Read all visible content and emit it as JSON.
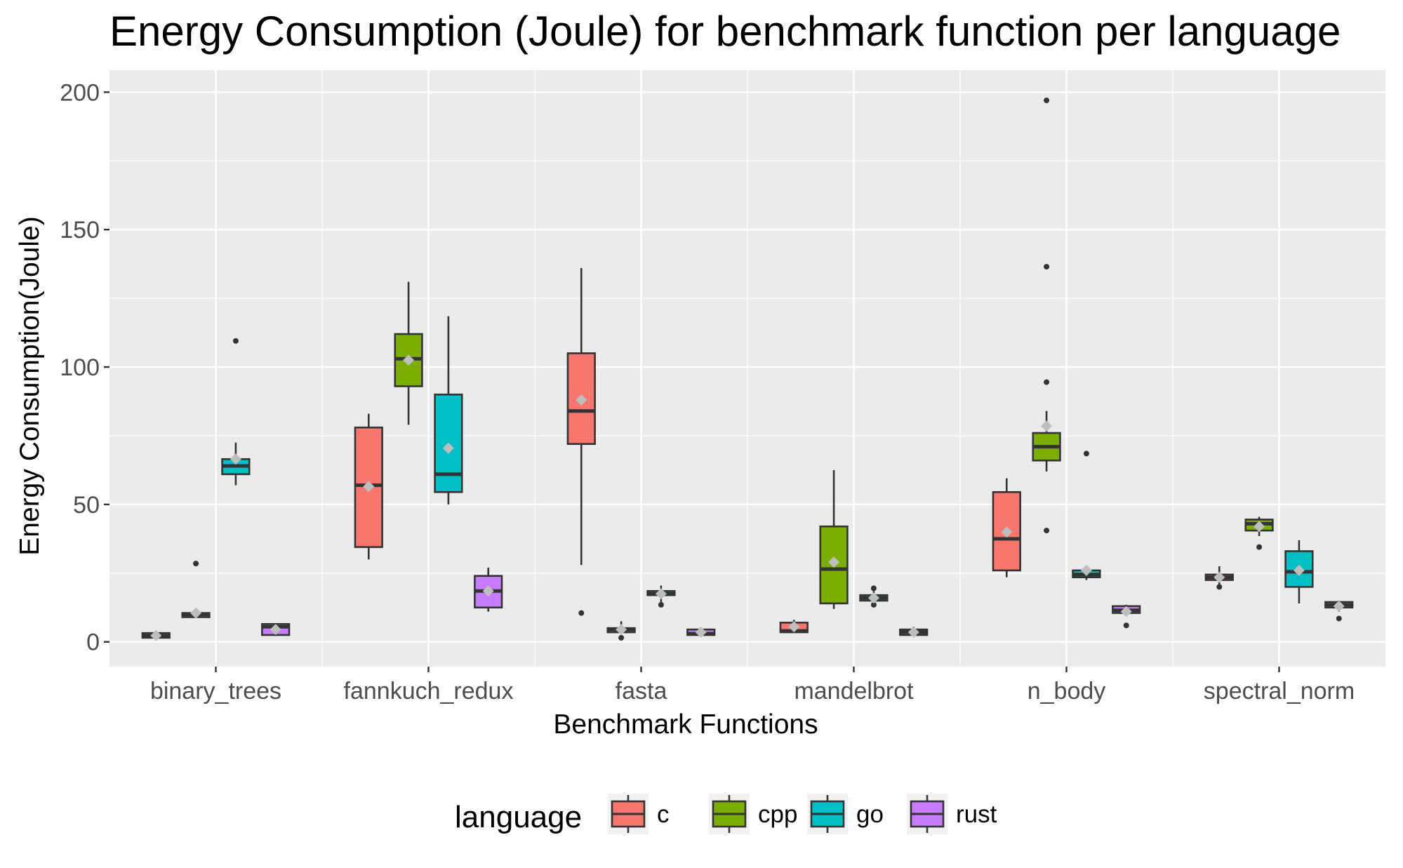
{
  "chart_data": {
    "type": "boxplot",
    "title": "Energy Consumption (Joule) for benchmark function per language",
    "xlabel": "Benchmark Functions",
    "ylabel": "Energy Consumption(Joule)",
    "ylim": [
      -9,
      208
    ],
    "yticks": [
      0,
      50,
      100,
      150,
      200
    ],
    "categories": [
      "binary_trees",
      "fannkuch_redux",
      "fasta",
      "mandelbrot",
      "n_body",
      "spectral_norm"
    ],
    "legend": {
      "title": "language",
      "placement": "bottom",
      "entries": [
        "c",
        "cpp",
        "go",
        "rust"
      ]
    },
    "colors": {
      "c": "#F8766D",
      "cpp": "#7CAE00",
      "go": "#00BFC4",
      "rust": "#C77CFF",
      "panel": "#EBEBEB",
      "grid": "#FFFFFF",
      "box_line": "#333333",
      "mean_marker": "#BEBEBE"
    },
    "series": [
      {
        "name": "c",
        "boxes": [
          {
            "category": "binary_trees",
            "min": 1.5,
            "q1": 1.5,
            "median": 2.2,
            "q3": 3.2,
            "max": 3.5,
            "mean": 2.3,
            "outliers": []
          },
          {
            "category": "fannkuch_redux",
            "min": 30,
            "q1": 34.5,
            "median": 57,
            "q3": 78,
            "max": 83,
            "mean": 56.5,
            "outliers": []
          },
          {
            "category": "fasta",
            "min": 28,
            "q1": 72,
            "median": 84,
            "q3": 105,
            "max": 136,
            "mean": 88,
            "outliers": [
              10.5
            ]
          },
          {
            "category": "mandelbrot",
            "min": 3.5,
            "q1": 3.5,
            "median": 4,
            "q3": 7,
            "max": 8,
            "mean": 5.5,
            "outliers": []
          },
          {
            "category": "n_body",
            "min": 23.5,
            "q1": 26,
            "median": 37.5,
            "q3": 54.5,
            "max": 59.5,
            "mean": 40,
            "outliers": []
          },
          {
            "category": "spectral_norm",
            "min": 20.5,
            "q1": 22.5,
            "median": 23.5,
            "q3": 24.5,
            "max": 27.5,
            "mean": 23.5,
            "outliers": [
              20
            ]
          }
        ]
      },
      {
        "name": "cpp",
        "boxes": [
          {
            "category": "binary_trees",
            "min": 9,
            "q1": 9,
            "median": 10,
            "q3": 10.5,
            "max": 11,
            "mean": 10.5,
            "outliers": [
              28.5
            ]
          },
          {
            "category": "fannkuch_redux",
            "min": 79,
            "q1": 93,
            "median": 103,
            "q3": 112,
            "max": 131,
            "mean": 102.5,
            "outliers": []
          },
          {
            "category": "fasta",
            "min": 3,
            "q1": 3.5,
            "median": 4.5,
            "q3": 5,
            "max": 7.5,
            "mean": 4.5,
            "outliers": [
              1.5
            ]
          },
          {
            "category": "mandelbrot",
            "min": 12,
            "q1": 14,
            "median": 26.5,
            "q3": 42,
            "max": 62.5,
            "mean": 29,
            "outliers": []
          },
          {
            "category": "n_body",
            "min": 62,
            "q1": 66,
            "median": 71,
            "q3": 76,
            "max": 84,
            "mean": 78.5,
            "outliers": [
              197,
              136.5,
              94.5,
              40.5
            ]
          },
          {
            "category": "spectral_norm",
            "min": 38.5,
            "q1": 40.5,
            "median": 43,
            "q3": 44.5,
            "max": 45.5,
            "mean": 42,
            "outliers": [
              34.5
            ]
          }
        ]
      },
      {
        "name": "go",
        "boxes": [
          {
            "category": "binary_trees",
            "min": 57,
            "q1": 61,
            "median": 64,
            "q3": 66.5,
            "max": 72.5,
            "mean": 66.5,
            "outliers": [
              109.5
            ]
          },
          {
            "category": "fannkuch_redux",
            "min": 50,
            "q1": 54.5,
            "median": 61,
            "q3": 90,
            "max": 118.5,
            "mean": 70.5,
            "outliers": []
          },
          {
            "category": "fasta",
            "min": 14.5,
            "q1": 17,
            "median": 17.5,
            "q3": 18.5,
            "max": 20.5,
            "mean": 17.5,
            "outliers": [
              13.5
            ]
          },
          {
            "category": "mandelbrot",
            "min": 14,
            "q1": 15,
            "median": 16,
            "q3": 17,
            "max": 18.5,
            "mean": 16,
            "outliers": [
              19.5,
              13.5
            ]
          },
          {
            "category": "n_body",
            "min": 22.5,
            "q1": 23.5,
            "median": 24.5,
            "q3": 26,
            "max": 26.5,
            "mean": 26,
            "outliers": [
              68.5
            ]
          },
          {
            "category": "spectral_norm",
            "min": 14,
            "q1": 20,
            "median": 25.5,
            "q3": 33,
            "max": 37,
            "mean": 26,
            "outliers": []
          }
        ]
      },
      {
        "name": "rust",
        "boxes": [
          {
            "category": "binary_trees",
            "min": 2.5,
            "q1": 2.5,
            "median": 5.5,
            "q3": 6.5,
            "max": 6.5,
            "mean": 4.5,
            "outliers": []
          },
          {
            "category": "fannkuch_redux",
            "min": 11,
            "q1": 12.5,
            "median": 18.5,
            "q3": 24,
            "max": 27,
            "mean": 18.5,
            "outliers": []
          },
          {
            "category": "fasta",
            "min": 2.5,
            "q1": 2.5,
            "median": 3,
            "q3": 4.5,
            "max": 5,
            "mean": 3.5,
            "outliers": []
          },
          {
            "category": "mandelbrot",
            "min": 2,
            "q1": 2.5,
            "median": 3.5,
            "q3": 4.5,
            "max": 5.5,
            "mean": 3.5,
            "outliers": []
          },
          {
            "category": "n_body",
            "min": 9.5,
            "q1": 10.5,
            "median": 11.5,
            "q3": 13,
            "max": 13.5,
            "mean": 11,
            "outliers": [
              6
            ]
          },
          {
            "category": "spectral_norm",
            "min": 11,
            "q1": 12.5,
            "median": 13.5,
            "q3": 14.5,
            "max": 15,
            "mean": 13,
            "outliers": [
              8.5
            ]
          }
        ]
      }
    ]
  }
}
